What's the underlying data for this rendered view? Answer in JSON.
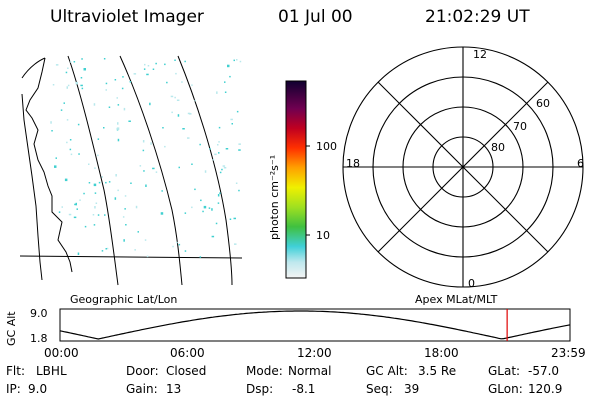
{
  "header": {
    "title": "Ultraviolet Imager",
    "date": "01 Jul 00",
    "time": "21:02:29 UT"
  },
  "colorbar": {
    "unit_label": "photon cm⁻²s⁻¹",
    "ticks": [
      "100",
      "10"
    ]
  },
  "polar_plot": {
    "mlt_labels": {
      "top": "12",
      "left": "18",
      "right": "6",
      "bottom": "0"
    },
    "lat_labels": [
      "60",
      "70",
      "80"
    ]
  },
  "map_labels": {
    "left": "Geographic Lat/Lon",
    "right": "Apex MLat/MLT"
  },
  "altitude_plot": {
    "ylabel": "GC Alt",
    "yticks": [
      "9.0",
      "1.8"
    ],
    "xticks": [
      "00:00",
      "06:00",
      "12:00",
      "18:00",
      "23:59"
    ],
    "current_time_color": "#e00000"
  },
  "footer": {
    "row1": [
      {
        "label": "Flt:",
        "value": "LBHL"
      },
      {
        "label": "Door:",
        "value": "Closed"
      },
      {
        "label": "Mode:",
        "value": "Normal"
      },
      {
        "label": "GC Alt:",
        "value": "3.5 Re"
      },
      {
        "label": "GLat:",
        "value": "-57.0"
      }
    ],
    "row2": [
      {
        "label": "IP:",
        "value": "9.0"
      },
      {
        "label": "Gain:",
        "value": "13"
      },
      {
        "label": "Dsp:",
        "value": "-8.1"
      },
      {
        "label": "Seq:",
        "value": "39"
      },
      {
        "label": "GLon:",
        "value": "120.9"
      }
    ]
  }
}
